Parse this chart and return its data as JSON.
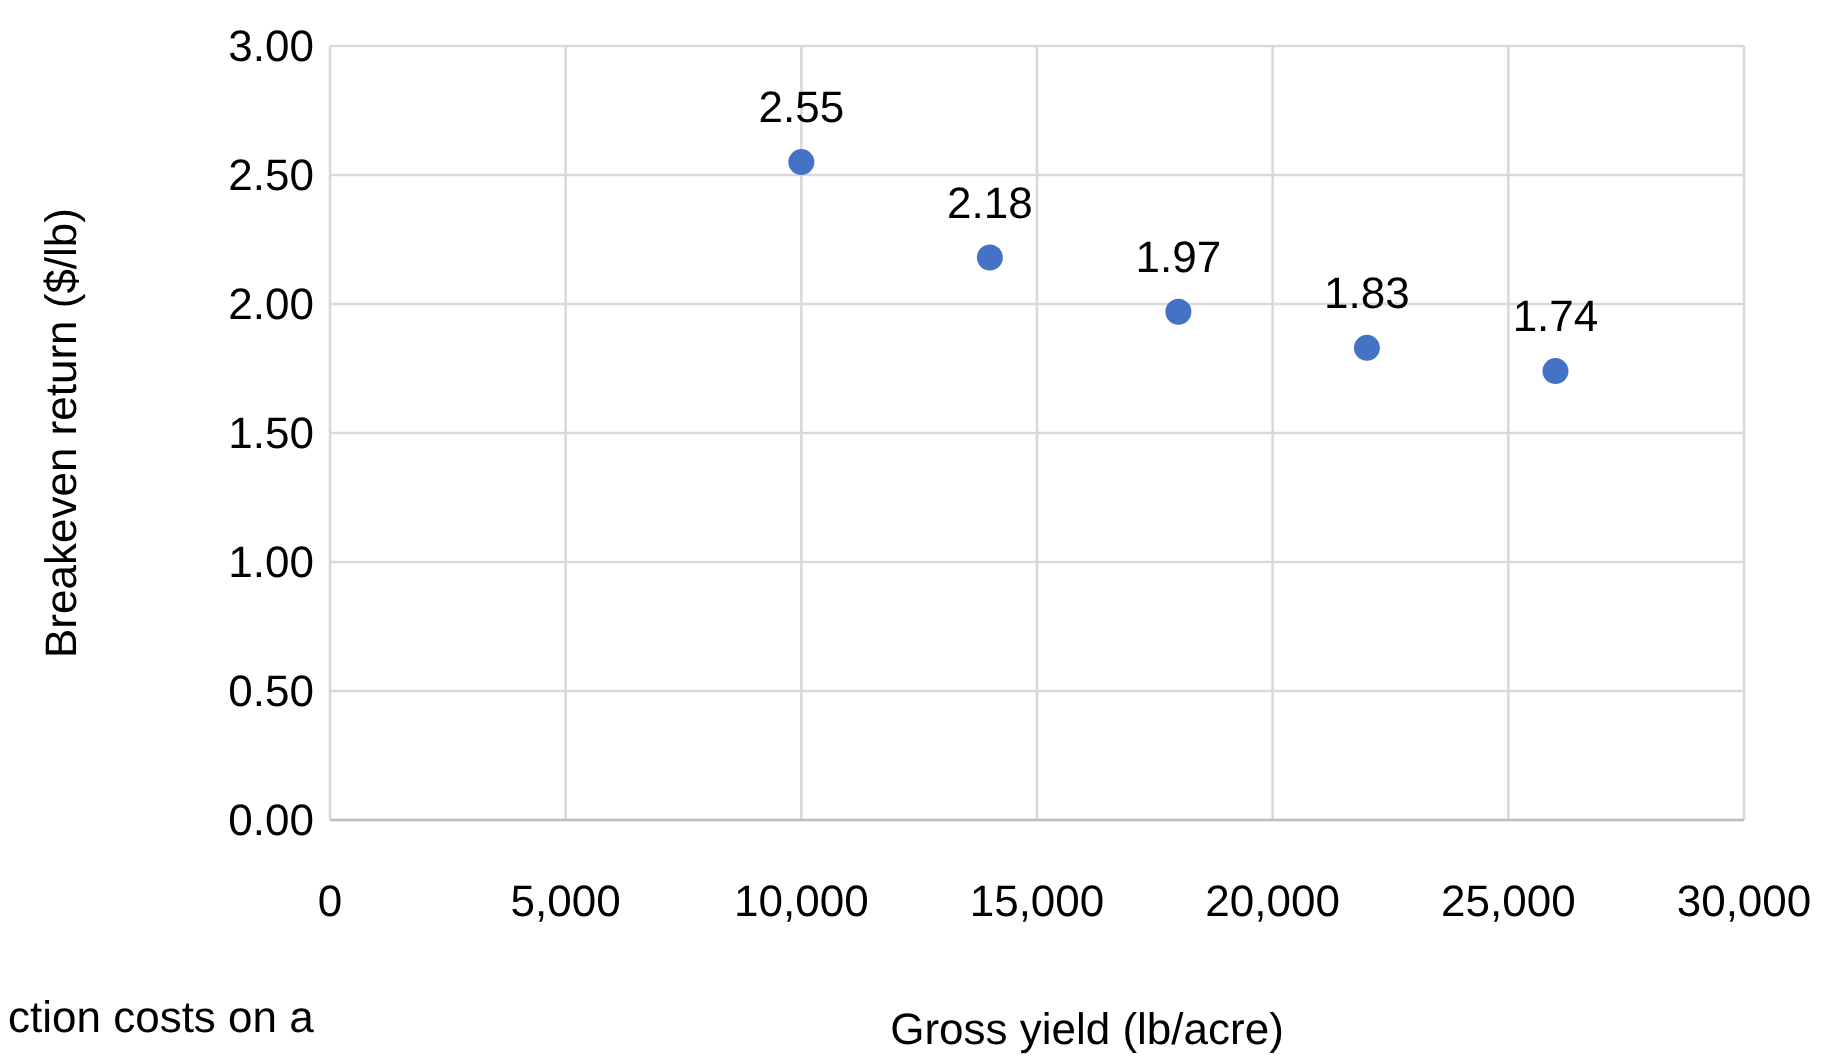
{
  "chart_data": {
    "type": "scatter",
    "xlabel": "Gross yield (lb/acre)",
    "ylabel": "Breakeven return ($/lb)",
    "x": [
      10000,
      14000,
      18000,
      22000,
      26000
    ],
    "series": [
      {
        "color": "#4472c4",
        "values": [
          2.55,
          2.18,
          1.97,
          1.83,
          1.74
        ]
      }
    ],
    "xlim": [
      0,
      30000
    ],
    "xticks": [
      0,
      {
        "value": 5000,
        "label": "5,000"
      },
      {
        "value": 10000,
        "label": "10,000"
      },
      {
        "value": 15000,
        "label": "15,000"
      },
      {
        "value": 20000,
        "label": "20,000"
      },
      {
        "value": 25000,
        "label": "25,000"
      },
      {
        "value": 30000,
        "label": "30,000"
      }
    ],
    "ylim": [
      0,
      3
    ],
    "yticks": [
      {
        "value": 0,
        "label": "0.00"
      },
      {
        "value": 0.5,
        "label": "0.50"
      },
      {
        "value": 1,
        "label": "1.00"
      },
      {
        "value": 1.5,
        "label": "1.50"
      },
      {
        "value": 2,
        "label": "2.00"
      },
      {
        "value": 2.5,
        "label": "2.50"
      },
      {
        "value": 3,
        "label": "3.00"
      }
    ],
    "grid": true,
    "marker": "circle",
    "data_labels": true,
    "annotations": [
      "ction costs on a"
    ]
  }
}
